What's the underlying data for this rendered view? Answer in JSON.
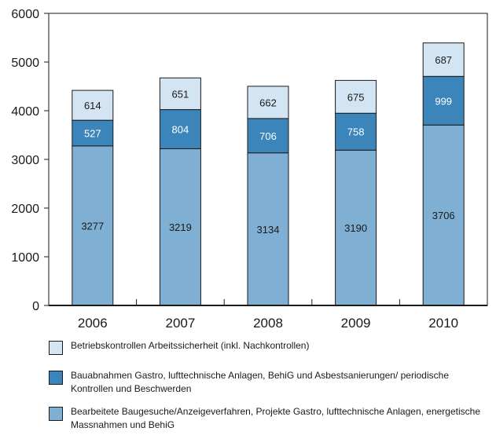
{
  "colors": {
    "base": "#7fb0d4",
    "middle": "#3c85bb",
    "top": "#d3e5f2",
    "axis": "#1a1a1a"
  },
  "chart_data": {
    "type": "bar",
    "stacked": true,
    "categories": [
      "2006",
      "2007",
      "2008",
      "2009",
      "2010"
    ],
    "ylim": [
      0,
      6000
    ],
    "yticks": [
      "0",
      "1000",
      "2000",
      "3000",
      "4000",
      "5000",
      "6000"
    ],
    "ytick_values": [
      0,
      1000,
      2000,
      3000,
      4000,
      5000,
      6000
    ],
    "grid": false,
    "legend_position": "bottom",
    "series": [
      {
        "name": "Bearbeitete Baugesuche/Anzeigeverfahren, Projekte Gastro, lufttechnische Anlagen, energetische Massnahmen und BehiG",
        "values": [
          3277,
          3219,
          3134,
          3190,
          3706
        ],
        "color_key": "base",
        "label_color": "#1a1a1a"
      },
      {
        "name": "Bauabnahmen Gastro, lufttechnische Anlagen, BehiG und Asbestsanierungen/ periodische Kontrollen und Beschwerden",
        "values": [
          527,
          804,
          706,
          758,
          999
        ],
        "color_key": "middle",
        "label_color": "#ffffff"
      },
      {
        "name": "Betriebskontrollen Arbeitssicherheit (inkl. Nachkontrollen)",
        "values": [
          614,
          651,
          662,
          675,
          687
        ],
        "color_key": "top",
        "label_color": "#1a1a1a"
      }
    ]
  },
  "legend": {
    "items": [
      {
        "label": "Betriebskontrollen Arbeitssicherheit (inkl. Nachkontrollen)",
        "color_key": "top"
      },
      {
        "label": "Bauabnahmen Gastro, lufttechnische Anlagen, BehiG und Asbestsanierungen/ periodische Kontrollen und Beschwerden",
        "color_key": "middle"
      },
      {
        "label": "Bearbeitete Baugesuche/Anzeigeverfahren, Projekte Gastro, lufttechnische Anlagen, energetische Massnahmen und BehiG",
        "color_key": "base"
      }
    ]
  }
}
